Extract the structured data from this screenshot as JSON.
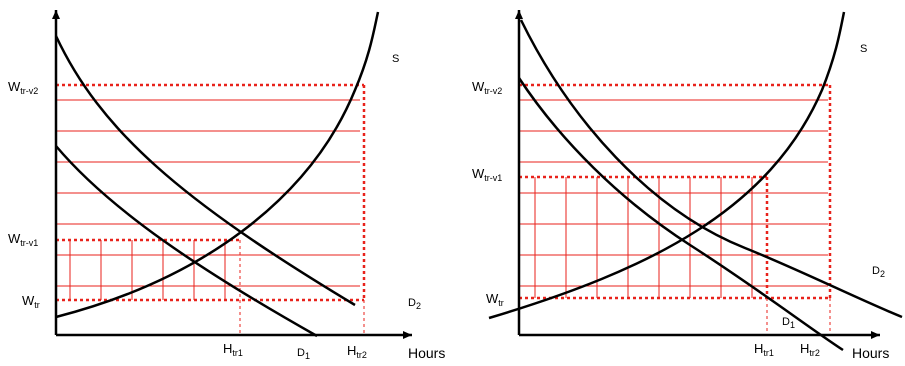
{
  "left_panel": {
    "y_labels": {
      "w_tr_v2": {
        "main": "W",
        "sub": "tr-v2"
      },
      "w_tr_v1": {
        "main": "W",
        "sub": "tr-v1"
      },
      "w_tr": {
        "main": "W",
        "sub": "tr"
      }
    },
    "x_labels": {
      "h_tr1": {
        "main": "H",
        "sub": "tr1"
      },
      "h_tr2": {
        "main": "H",
        "sub": "tr2"
      },
      "hours": "Hours"
    },
    "curve_labels": {
      "s": {
        "main": "S",
        "sub": ""
      },
      "d1": {
        "main": "D",
        "sub": "1"
      },
      "d2": {
        "main": "D",
        "sub": "2"
      }
    }
  },
  "right_panel": {
    "y_labels": {
      "w_tr_v2": {
        "main": "W",
        "sub": "tr-v2"
      },
      "w_tr_v1": {
        "main": "W",
        "sub": "tr-v1"
      },
      "w_tr": {
        "main": "W",
        "sub": "tr"
      }
    },
    "x_labels": {
      "h_tr1": {
        "main": "H",
        "sub": "tr1"
      },
      "h_tr2": {
        "main": "H",
        "sub": "tr2"
      },
      "hours": "Hours"
    },
    "curve_labels": {
      "s": {
        "main": "S",
        "sub": ""
      },
      "d1": {
        "main": "D",
        "sub": "1"
      },
      "d2": {
        "main": "D",
        "sub": "2"
      }
    }
  },
  "colors": {
    "axis": "#000000",
    "curve": "#000000",
    "grid": "#e8221b"
  }
}
